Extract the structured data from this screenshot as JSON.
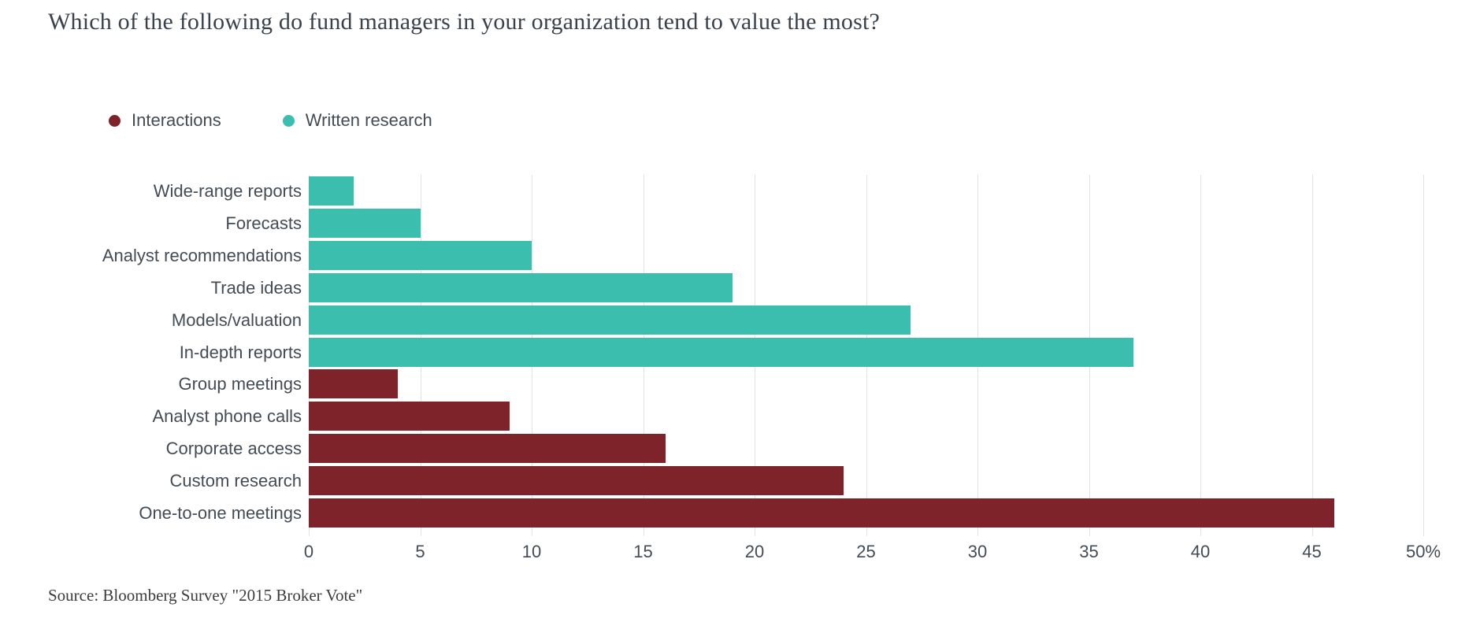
{
  "title": "Which of the following do fund managers in your organization tend to value the most?",
  "source": "Source: Bloomberg Survey \"2015 Broker Vote\"",
  "legend": {
    "position": "top-left",
    "items": [
      {
        "label": "Interactions",
        "color": "#7e2329"
      },
      {
        "label": "Written research",
        "color": "#3cbeae"
      }
    ]
  },
  "chart_data": {
    "type": "bar",
    "orientation": "horizontal",
    "title": "Which of the following do fund managers in your organization tend to value the most?",
    "grid": true,
    "legend_position": "top-left",
    "x_axis": {
      "min": 0,
      "max": 50,
      "tick_step": 5,
      "tick_labels": [
        "0",
        "5",
        "10",
        "15",
        "20",
        "25",
        "30",
        "35",
        "40",
        "45",
        "50%"
      ]
    },
    "series_colors": {
      "Interactions": "#7e2329",
      "Written research": "#3cbeae"
    },
    "points": [
      {
        "category": "Wide-range reports",
        "value": 2,
        "series": "Written research"
      },
      {
        "category": "Forecasts",
        "value": 5,
        "series": "Written research"
      },
      {
        "category": "Analyst recommendations",
        "value": 10,
        "series": "Written research"
      },
      {
        "category": "Trade ideas",
        "value": 19,
        "series": "Written research"
      },
      {
        "category": "Models/valuation",
        "value": 27,
        "series": "Written research"
      },
      {
        "category": "In-depth reports",
        "value": 37,
        "series": "Written research"
      },
      {
        "category": "Group meetings",
        "value": 4,
        "series": "Interactions"
      },
      {
        "category": "Analyst phone calls",
        "value": 9,
        "series": "Interactions"
      },
      {
        "category": "Corporate access",
        "value": 16,
        "series": "Interactions"
      },
      {
        "category": "Custom research",
        "value": 24,
        "series": "Interactions"
      },
      {
        "category": "One-to-one meetings",
        "value": 46,
        "series": "Interactions"
      }
    ]
  }
}
